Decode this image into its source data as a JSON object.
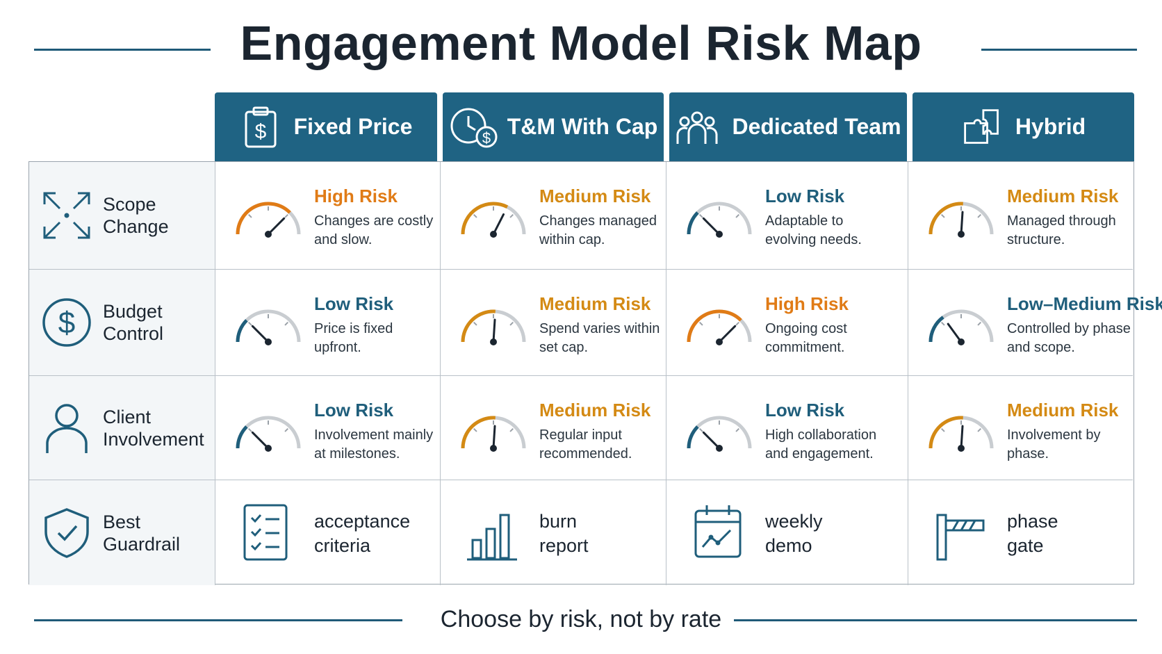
{
  "title": "Engagement Model Risk Map",
  "footer": "Choose by risk, not by rate",
  "colors": {
    "header_bg": "#1f6383",
    "high": "#e07b16",
    "medium": "#d48a14",
    "low": "#1f5e7b",
    "gauge_track": "#c9cdd1"
  },
  "columns": [
    {
      "label": "Fixed Price",
      "icon": "clipboard-dollar-icon"
    },
    {
      "label": "T&M With Cap",
      "icon": "clock-dollar-icon"
    },
    {
      "label": "Dedicated Team",
      "icon": "team-icon"
    },
    {
      "label": "Hybrid",
      "icon": "puzzle-icon"
    }
  ],
  "rows": [
    {
      "label": "Scope Change",
      "icon": "expand-arrows-icon",
      "cells": [
        {
          "level": "High Risk",
          "desc": "Changes are costly and slow.",
          "gauge": 0.75
        },
        {
          "level": "Medium Risk",
          "desc": "Changes managed within cap.",
          "gauge": 0.65
        },
        {
          "level": "Low Risk",
          "desc": "Adaptable to evolving needs.",
          "gauge": 0.25
        },
        {
          "level": "Medium Risk",
          "desc": "Managed through structure.",
          "gauge": 0.52
        }
      ]
    },
    {
      "label": "Budget Control",
      "icon": "dollar-circle-icon",
      "cells": [
        {
          "level": "Low Risk",
          "desc": "Price is fixed upfront.",
          "gauge": 0.25
        },
        {
          "level": "Medium Risk",
          "desc": "Spend varies within set cap.",
          "gauge": 0.52
        },
        {
          "level": "High Risk",
          "desc": "Ongoing cost commitment.",
          "gauge": 0.75
        },
        {
          "level": "Low–Medium Risk",
          "desc": "Controlled by phase and scope.",
          "gauge": 0.3
        }
      ]
    },
    {
      "label": "Client Involvement",
      "icon": "person-icon",
      "cells": [
        {
          "level": "Low Risk",
          "desc": "Involvement mainly at milestones.",
          "gauge": 0.25
        },
        {
          "level": "Medium Risk",
          "desc": "Regular input recommended.",
          "gauge": 0.52
        },
        {
          "level": "Low Risk",
          "desc": "High collaboration and engagement.",
          "gauge": 0.25
        },
        {
          "level": "Medium Risk",
          "desc": "Involvement by phase.",
          "gauge": 0.52
        }
      ]
    },
    {
      "label": "Best Guardrail",
      "icon": "shield-check-icon",
      "guardrails": [
        {
          "text": "acceptance\ncriteria",
          "icon": "checklist-icon"
        },
        {
          "text": "burn\nreport",
          "icon": "bar-chart-icon"
        },
        {
          "text": "weekly\ndemo",
          "icon": "calendar-trend-icon"
        },
        {
          "text": "phase\ngate",
          "icon": "barrier-gate-icon"
        }
      ]
    }
  ]
}
